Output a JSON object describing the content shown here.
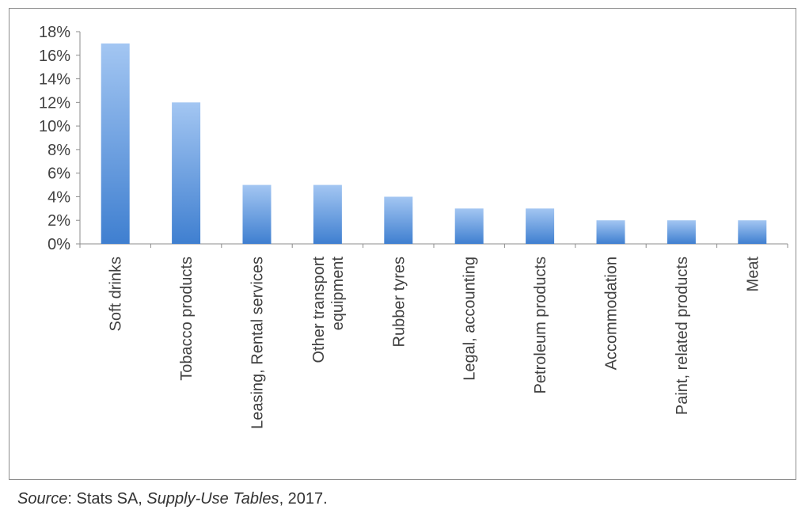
{
  "chart_data": {
    "type": "bar",
    "title": "",
    "xlabel": "",
    "ylabel": "",
    "categories": [
      [
        "Soft drinks"
      ],
      [
        "Tobacco products"
      ],
      [
        "Leasing, Rental services"
      ],
      [
        "Other transport",
        "equipment"
      ],
      [
        "Rubber tyres"
      ],
      [
        "Legal, accounting"
      ],
      [
        "Petroleum products"
      ],
      [
        "Accommodation"
      ],
      [
        "Paint, related products"
      ],
      [
        "Meat"
      ]
    ],
    "values": [
      17,
      12,
      5,
      5,
      4,
      3,
      3,
      2,
      2,
      2
    ],
    "ylim": [
      0,
      18
    ],
    "yticks": [
      0,
      2,
      4,
      6,
      8,
      10,
      12,
      14,
      16,
      18
    ],
    "ytick_suffix": "%",
    "grid": false,
    "legend": "none",
    "bar_color_top": "#a3c6f2",
    "bar_color_bottom": "#3f7fd0"
  },
  "source": {
    "label": "Source",
    "colon": ": Stats SA, ",
    "publication": "Supply-Use Tables",
    "year": ", 2017."
  }
}
